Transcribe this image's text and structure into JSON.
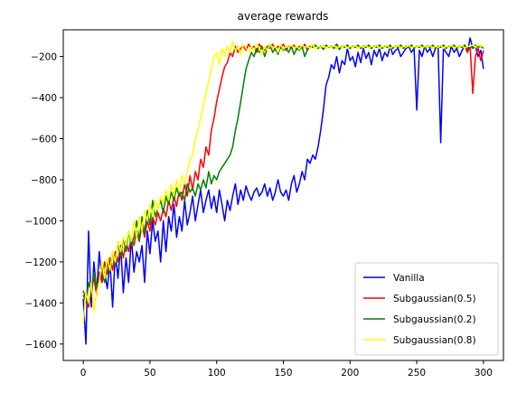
{
  "chart_data": {
    "type": "line",
    "title": "average rewards",
    "xlabel": "",
    "ylabel": "",
    "xlim": [
      -15,
      315
    ],
    "ylim": [
      -1680,
      -70
    ],
    "xticks": [
      0,
      50,
      100,
      150,
      200,
      250,
      300
    ],
    "yticks": [
      -1600,
      -1400,
      -1200,
      -1000,
      -800,
      -600,
      -400,
      -200
    ],
    "grid": false,
    "legend_position": "lower-right",
    "series": [
      {
        "name": "Vanilla",
        "color": "#0000ff",
        "x": [
          0,
          2,
          4,
          6,
          8,
          10,
          12,
          14,
          16,
          18,
          20,
          22,
          24,
          26,
          28,
          30,
          32,
          34,
          36,
          38,
          40,
          42,
          44,
          46,
          48,
          50,
          52,
          54,
          56,
          58,
          60,
          62,
          64,
          66,
          68,
          70,
          72,
          74,
          76,
          78,
          80,
          82,
          84,
          86,
          88,
          90,
          92,
          94,
          96,
          98,
          100,
          102,
          104,
          106,
          108,
          110,
          112,
          114,
          116,
          118,
          120,
          122,
          124,
          126,
          128,
          130,
          132,
          134,
          136,
          138,
          140,
          142,
          144,
          146,
          148,
          150,
          152,
          154,
          156,
          158,
          160,
          162,
          164,
          166,
          168,
          170,
          172,
          174,
          176,
          178,
          180,
          182,
          184,
          186,
          188,
          190,
          192,
          194,
          196,
          198,
          200,
          202,
          204,
          206,
          208,
          210,
          212,
          214,
          216,
          218,
          220,
          222,
          224,
          226,
          228,
          230,
          232,
          234,
          236,
          238,
          240,
          242,
          244,
          246,
          248,
          250,
          252,
          254,
          256,
          258,
          260,
          262,
          264,
          266,
          268,
          270,
          272,
          274,
          276,
          278,
          280,
          282,
          284,
          286,
          288,
          290,
          292,
          294,
          296,
          298,
          300
        ],
        "y": [
          -1380,
          -1600,
          -1050,
          -1420,
          -1200,
          -1350,
          -1150,
          -1300,
          -1250,
          -1330,
          -1200,
          -1420,
          -1150,
          -1280,
          -1120,
          -1350,
          -1180,
          -1300,
          -1080,
          -1250,
          -1150,
          -1200,
          -1120,
          -1300,
          -1050,
          -1160,
          -1000,
          -1100,
          -1050,
          -1200,
          -1000,
          -1150,
          -980,
          -1050,
          -920,
          -1080,
          -980,
          -1050,
          -900,
          -1020,
          -960,
          -880,
          -1000,
          -920,
          -850,
          -960,
          -900,
          -850,
          -940,
          -880,
          -960,
          -850,
          -920,
          -1000,
          -900,
          -950,
          -880,
          -820,
          -920,
          -850,
          -900,
          -830,
          -870,
          -900,
          -860,
          -840,
          -880,
          -860,
          -820,
          -880,
          -840,
          -900,
          -860,
          -800,
          -860,
          -880,
          -850,
          -900,
          -820,
          -780,
          -860,
          -820,
          -760,
          -800,
          -700,
          -720,
          -680,
          -700,
          -640,
          -560,
          -460,
          -340,
          -300,
          -240,
          -260,
          -200,
          -280,
          -220,
          -240,
          -160,
          -220,
          -200,
          -250,
          -180,
          -230,
          -160,
          -210,
          -180,
          -240,
          -170,
          -200,
          -160,
          -220,
          -180,
          -200,
          -150,
          -190,
          -170,
          -160,
          -200,
          -180,
          -160,
          -150,
          -180,
          -160,
          -460,
          -170,
          -200,
          -150,
          -180,
          -160,
          -200,
          -160,
          -150,
          -620,
          -160,
          -180,
          -200,
          -150,
          -180,
          -160,
          -200,
          -170,
          -150,
          -180,
          -110,
          -160,
          -150,
          -200,
          -170,
          -260
        ]
      },
      {
        "name": "Subgaussian(0.5)",
        "color": "#ff0000",
        "x": [
          0,
          2,
          4,
          6,
          8,
          10,
          12,
          14,
          16,
          18,
          20,
          22,
          24,
          26,
          28,
          30,
          32,
          34,
          36,
          38,
          40,
          42,
          44,
          46,
          48,
          50,
          52,
          54,
          56,
          58,
          60,
          62,
          64,
          66,
          68,
          70,
          72,
          74,
          76,
          78,
          80,
          82,
          84,
          86,
          88,
          90,
          92,
          94,
          96,
          98,
          100,
          102,
          104,
          106,
          108,
          110,
          112,
          114,
          116,
          118,
          120,
          122,
          124,
          126,
          128,
          130,
          132,
          134,
          136,
          138,
          140,
          142,
          144,
          146,
          148,
          150,
          152,
          154,
          156,
          158,
          160,
          162,
          164,
          166,
          168,
          170,
          172,
          174,
          176,
          178,
          180,
          182,
          184,
          186,
          188,
          190,
          192,
          194,
          196,
          198,
          200,
          202,
          204,
          206,
          208,
          210,
          212,
          214,
          216,
          218,
          220,
          222,
          224,
          226,
          228,
          230,
          232,
          234,
          236,
          238,
          240,
          242,
          244,
          246,
          248,
          250,
          252,
          254,
          256,
          258,
          260,
          262,
          264,
          266,
          268,
          270,
          272,
          274,
          276,
          278,
          280,
          282,
          284,
          286,
          288,
          290,
          292,
          294,
          296,
          298,
          300
        ],
        "y": [
          -1340,
          -1380,
          -1420,
          -1320,
          -1280,
          -1360,
          -1250,
          -1300,
          -1200,
          -1260,
          -1180,
          -1240,
          -1150,
          -1200,
          -1120,
          -1180,
          -1100,
          -1150,
          -1080,
          -1120,
          -1050,
          -1100,
          -1020,
          -1080,
          -1000,
          -1050,
          -980,
          -1020,
          -960,
          -1000,
          -940,
          -980,
          -900,
          -950,
          -880,
          -930,
          -850,
          -900,
          -820,
          -880,
          -780,
          -850,
          -760,
          -800,
          -700,
          -740,
          -640,
          -680,
          -560,
          -500,
          -420,
          -360,
          -300,
          -250,
          -230,
          -180,
          -200,
          -150,
          -180,
          -160,
          -150,
          -170,
          -140,
          -160,
          -150,
          -180,
          -140,
          -160,
          -170,
          -150,
          -160,
          -140,
          -170,
          -150,
          -160,
          -140,
          -170,
          -150,
          -160,
          -145,
          -165,
          -150,
          -160,
          -140,
          -170,
          -150,
          -155,
          -145,
          -160,
          -150,
          -165,
          -145,
          -155,
          -150,
          -160,
          -140,
          -165,
          -150,
          -155,
          -145,
          -160,
          -150,
          -155,
          -145,
          -160,
          -150,
          -155,
          -145,
          -160,
          -150,
          -155,
          -145,
          -160,
          -150,
          -155,
          -145,
          -160,
          -150,
          -155,
          -145,
          -160,
          -150,
          -155,
          -145,
          -160,
          -150,
          -155,
          -145,
          -160,
          -150,
          -155,
          -145,
          -160,
          -150,
          -155,
          -145,
          -160,
          -150,
          -155,
          -145,
          -160,
          -150,
          -155,
          -145,
          -180,
          -150,
          -380,
          -200,
          -160,
          -220,
          -170
        ]
      },
      {
        "name": "Subgaussian(0.2)",
        "color": "#008000",
        "x": [
          0,
          2,
          4,
          6,
          8,
          10,
          12,
          14,
          16,
          18,
          20,
          22,
          24,
          26,
          28,
          30,
          32,
          34,
          36,
          38,
          40,
          42,
          44,
          46,
          48,
          50,
          52,
          54,
          56,
          58,
          60,
          62,
          64,
          66,
          68,
          70,
          72,
          74,
          76,
          78,
          80,
          82,
          84,
          86,
          88,
          90,
          92,
          94,
          96,
          98,
          100,
          102,
          104,
          106,
          108,
          110,
          112,
          114,
          116,
          118,
          120,
          122,
          124,
          126,
          128,
          130,
          132,
          134,
          136,
          138,
          140,
          142,
          144,
          146,
          148,
          150,
          152,
          154,
          156,
          158,
          160,
          162,
          164,
          166,
          168,
          170,
          172,
          174,
          176,
          178,
          180,
          182,
          184,
          186,
          188,
          190,
          192,
          194,
          196,
          198,
          200,
          202,
          204,
          206,
          208,
          210,
          212,
          214,
          216,
          218,
          220,
          222,
          224,
          226,
          228,
          230,
          232,
          234,
          236,
          238,
          240,
          242,
          244,
          246,
          248,
          250,
          252,
          254,
          256,
          258,
          260,
          262,
          264,
          266,
          268,
          270,
          272,
          274,
          276,
          278,
          280,
          282,
          284,
          286,
          288,
          290,
          292,
          294,
          296,
          298,
          300
        ],
        "y": [
          -1360,
          -1400,
          -1300,
          -1350,
          -1250,
          -1320,
          -1280,
          -1220,
          -1300,
          -1200,
          -1250,
          -1150,
          -1220,
          -1100,
          -1180,
          -1080,
          -1150,
          -1050,
          -1120,
          -1080,
          -1000,
          -1100,
          -980,
          -1060,
          -950,
          -1020,
          -900,
          -980,
          -940,
          -900,
          -960,
          -880,
          -920,
          -860,
          -900,
          -840,
          -880,
          -860,
          -900,
          -820,
          -860,
          -840,
          -880,
          -820,
          -850,
          -800,
          -840,
          -760,
          -820,
          -780,
          -800,
          -760,
          -740,
          -720,
          -700,
          -680,
          -640,
          -560,
          -500,
          -420,
          -340,
          -260,
          -220,
          -180,
          -200,
          -160,
          -180,
          -150,
          -200,
          -160,
          -140,
          -180,
          -160,
          -190,
          -150,
          -170,
          -160,
          -180,
          -150,
          -190,
          -160,
          -170,
          -150,
          -200,
          -165,
          -150,
          -155,
          -145,
          -160,
          -150,
          -165,
          -145,
          -155,
          -150,
          -160,
          -140,
          -165,
          -150,
          -155,
          -145,
          -160,
          -150,
          -155,
          -145,
          -160,
          -150,
          -155,
          -145,
          -160,
          -150,
          -155,
          -145,
          -160,
          -150,
          -155,
          -145,
          -160,
          -150,
          -155,
          -145,
          -160,
          -150,
          -155,
          -145,
          -160,
          -150,
          -155,
          -145,
          -160,
          -150,
          -155,
          -145,
          -160,
          -150,
          -155,
          -145,
          -160,
          -150,
          -155,
          -145,
          -160,
          -150,
          -155,
          -145,
          -160,
          -150,
          -160,
          -145,
          -155,
          -150,
          -160
        ]
      },
      {
        "name": "Subgaussian(0.8)",
        "color": "#ffff00",
        "x": [
          0,
          2,
          4,
          6,
          8,
          10,
          12,
          14,
          16,
          18,
          20,
          22,
          24,
          26,
          28,
          30,
          32,
          34,
          36,
          38,
          40,
          42,
          44,
          46,
          48,
          50,
          52,
          54,
          56,
          58,
          60,
          62,
          64,
          66,
          68,
          70,
          72,
          74,
          76,
          78,
          80,
          82,
          84,
          86,
          88,
          90,
          92,
          94,
          96,
          98,
          100,
          102,
          104,
          106,
          108,
          110,
          112,
          114,
          116,
          118,
          120,
          122,
          124,
          126,
          128,
          130,
          132,
          134,
          136,
          138,
          140,
          142,
          144,
          146,
          148,
          150,
          152,
          154,
          156,
          158,
          160,
          162,
          164,
          166,
          168,
          170,
          172,
          174,
          176,
          178,
          180,
          182,
          184,
          186,
          188,
          190,
          192,
          194,
          196,
          198,
          200,
          202,
          204,
          206,
          208,
          210,
          212,
          214,
          216,
          218,
          220,
          222,
          224,
          226,
          228,
          230,
          232,
          234,
          236,
          238,
          240,
          242,
          244,
          246,
          248,
          250,
          252,
          254,
          256,
          258,
          260,
          262,
          264,
          266,
          268,
          270,
          272,
          274,
          276,
          278,
          280,
          282,
          284,
          286,
          288,
          290,
          292,
          294,
          296,
          298,
          300
        ],
        "y": [
          -1500,
          -1350,
          -1400,
          -1300,
          -1440,
          -1350,
          -1300,
          -1200,
          -1280,
          -1180,
          -1240,
          -1150,
          -1200,
          -1100,
          -1150,
          -1080,
          -1120,
          -1050,
          -1100,
          -1000,
          -1080,
          -980,
          -1050,
          -950,
          -1000,
          -920,
          -980,
          -900,
          -950,
          -880,
          -920,
          -850,
          -900,
          -820,
          -880,
          -800,
          -860,
          -780,
          -820,
          -760,
          -700,
          -680,
          -600,
          -560,
          -500,
          -440,
          -380,
          -320,
          -260,
          -200,
          -180,
          -240,
          -160,
          -200,
          -150,
          -180,
          -130,
          -170,
          -150,
          -190,
          -140,
          -160,
          -180,
          -150,
          -170,
          -140,
          -160,
          -190,
          -150,
          -170,
          -140,
          -160,
          -150,
          -180,
          -140,
          -165,
          -150,
          -155,
          -145,
          -160,
          -150,
          -165,
          -145,
          -155,
          -150,
          -160,
          -140,
          -165,
          -150,
          -155,
          -145,
          -160,
          -150,
          -155,
          -145,
          -160,
          -150,
          -155,
          -145,
          -160,
          -150,
          -155,
          -145,
          -160,
          -150,
          -155,
          -145,
          -160,
          -150,
          -155,
          -145,
          -160,
          -150,
          -155,
          -145,
          -160,
          -150,
          -155,
          -145,
          -160,
          -150,
          -155,
          -145,
          -160,
          -150,
          -155,
          -145,
          -160,
          -150,
          -155,
          -145,
          -160,
          -150,
          -155,
          -145,
          -160,
          -150,
          -155,
          -145,
          -160,
          -150,
          -155,
          -145,
          -160,
          -150,
          -150,
          -145,
          -155,
          -140,
          -150,
          -145
        ]
      }
    ]
  }
}
